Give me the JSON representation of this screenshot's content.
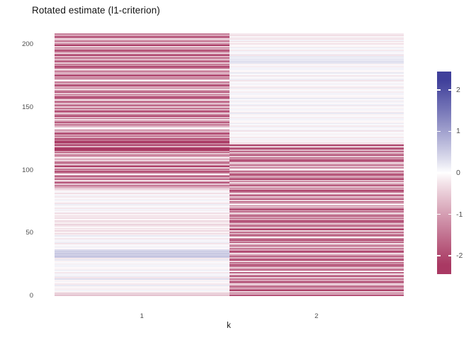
{
  "title": "Rotated estimate (l1-criterion)",
  "chart_data": {
    "type": "heatmap",
    "title": "Rotated estimate (l1-criterion)",
    "xlabel": "k",
    "ylabel": "",
    "x_categories": [
      "1",
      "2"
    ],
    "n_rows": 208,
    "ylim": [
      0,
      208
    ],
    "yticks": [
      0,
      50,
      100,
      150,
      200
    ],
    "grid": "off",
    "legend": {
      "position": "right",
      "ticks": [
        2,
        1,
        0,
        -1,
        -2
      ],
      "domain": [
        -2.44,
        2.44
      ],
      "high_color": "#40409b",
      "mid_color": "#ffffff",
      "low_color": "#a93963"
    },
    "series": [
      {
        "name": "k=1",
        "values": [
          -0.6,
          -0.4,
          -0.5,
          -0.1,
          0.1,
          -0.15,
          0.05,
          -0.1,
          0.2,
          -0.2,
          -0.05,
          0.1,
          -0.1,
          0.3,
          -0.25,
          0.15,
          -0.05,
          0.1,
          -0.2,
          0.05,
          0.2,
          -0.1,
          -0.05,
          0.1,
          0.1,
          -0.15,
          0.05,
          -0.1,
          0.2,
          -0.2,
          0.5,
          0.6,
          0.45,
          0.55,
          0.4,
          0.5,
          0.35,
          -0.05,
          0.1,
          -0.1,
          0.05,
          -0.25,
          0.15,
          -0.05,
          0.1,
          -0.2,
          0.05,
          0.2,
          -0.1,
          -0.3,
          -0.1,
          -0.35,
          -0.15,
          -0.3,
          -0.05,
          -0.25,
          -0.4,
          -0.1,
          -0.2,
          -0.35,
          -0.05,
          -0.3,
          -0.15,
          -0.25,
          -0.1,
          -0.3,
          0.05,
          -0.15,
          0.1,
          -0.2,
          0.05,
          -0.1,
          0.15,
          -0.25,
          -0.05,
          0.1,
          -0.15,
          0.05,
          -0.2,
          0.1,
          -0.05,
          -0.3,
          0.05,
          -0.15,
          -0.4,
          -0.6,
          -0.9,
          -1.4,
          -0.5,
          -1.8,
          -1.1,
          -0.3,
          -1.6,
          -0.7,
          -2.0,
          -1.3,
          -0.05,
          -1.5,
          -1.9,
          -0.8,
          -1.5,
          -0.4,
          -2.1,
          -1.2,
          -0.6,
          -1.7,
          -1.0,
          -0.3,
          -1.6,
          -0.05,
          -0.9,
          -1.4,
          -0.5,
          -1.8,
          -1.1,
          -2.2,
          -2.3,
          -2.1,
          -0.7,
          -2.0,
          -1.3,
          -2.2,
          -2.1,
          -1.5,
          -1.9,
          -0.8,
          -1.5,
          -0.4,
          -2.1,
          -1.2,
          -0.6,
          -1.7,
          -0.05,
          -0.3,
          -0.9,
          -1.4,
          -0.5,
          -1.8,
          -1.1,
          -0.3,
          -1.6,
          -0.7,
          -2.0,
          -1.3,
          -0.5,
          -1.5,
          -1.9,
          -0.8,
          -1.5,
          -0.4,
          -2.1,
          -1.2,
          -0.6,
          -1.7,
          -1.0,
          -0.3,
          -1.6,
          -2.0,
          -0.9,
          -1.4,
          -0.5,
          -1.8,
          -1.1,
          -0.3,
          -1.6,
          -0.7,
          -2.0,
          -1.3,
          -0.5,
          -1.5,
          -0.05,
          -0.8,
          -1.5,
          -0.4,
          -2.1,
          -1.2,
          -0.6,
          -1.7,
          -1.0,
          -0.3,
          -1.6,
          -2.0,
          -0.9,
          -1.4,
          -0.5,
          -1.8,
          -1.1,
          -0.3,
          -1.6,
          -0.7,
          -2.0,
          -1.3,
          -0.5,
          -1.5,
          -1.9,
          -0.8,
          -1.5,
          -0.4,
          -2.1,
          -1.2,
          -0.6,
          -1.7,
          -1.0,
          -0.3,
          -1.6,
          -2.0,
          -0.9,
          -1.3
        ]
      },
      {
        "name": "k=2",
        "values": [
          -1.9,
          -0.8,
          -1.5,
          -0.4,
          -2.1,
          -1.2,
          -0.6,
          -1.7,
          -1.0,
          -0.3,
          -1.6,
          -2.0,
          -0.9,
          -1.4,
          -0.5,
          -1.8,
          -1.1,
          -0.3,
          -1.6,
          -0.1,
          -2.0,
          -1.3,
          -0.5,
          -1.5,
          -1.9,
          -0.8,
          -1.5,
          -0.4,
          -2.1,
          -1.2,
          -0.6,
          -1.7,
          -1.0,
          -0.3,
          -1.6,
          -2.0,
          -0.9,
          -1.4,
          -0.5,
          -1.8,
          -1.1,
          -0.3,
          -1.6,
          -0.7,
          -2.0,
          -1.3,
          -0.1,
          -1.5,
          -1.9,
          -0.8,
          -1.5,
          -0.4,
          -2.1,
          -1.2,
          -0.6,
          -1.7,
          -1.0,
          -0.3,
          -1.6,
          -2.0,
          -0.9,
          -1.4,
          -0.5,
          -1.8,
          -1.1,
          -0.3,
          -1.6,
          -0.7,
          -2.0,
          -1.3,
          -0.5,
          -1.5,
          -0.1,
          -0.8,
          -1.5,
          -0.4,
          -2.1,
          -1.2,
          -0.6,
          -1.7,
          -1.0,
          -0.3,
          -1.6,
          -2.0,
          -0.9,
          -1.4,
          -0.5,
          -1.8,
          -1.1,
          -0.3,
          -1.6,
          -0.7,
          -2.0,
          -1.3,
          -0.5,
          -1.5,
          -1.9,
          -0.8,
          -1.5,
          -0.4,
          -0.1,
          -1.2,
          -0.6,
          -1.7,
          -1.0,
          -0.3,
          -1.6,
          -2.0,
          -0.9,
          -1.4,
          -0.5,
          -1.8,
          -1.1,
          -0.3,
          -1.6,
          -0.7,
          -2.0,
          -1.3,
          -0.5,
          -2.1,
          -0.3,
          -0.2,
          0.05,
          -0.15,
          0.1,
          -0.2,
          -0.05,
          0.1,
          -0.1,
          0.05,
          -0.25,
          0.15,
          -0.05,
          0.1,
          -0.2,
          0.05,
          0.2,
          -0.1,
          -0.05,
          0.1,
          0.1,
          -0.15,
          0.05,
          -0.1,
          0.2,
          -0.2,
          -0.05,
          0.1,
          -0.1,
          0.05,
          -0.25,
          0.15,
          -0.05,
          0.1,
          -0.2,
          0.05,
          0.2,
          -0.1,
          -0.05,
          0.1,
          0.1,
          -0.15,
          0.05,
          -0.1,
          0.2,
          -0.2,
          -0.05,
          0.1,
          -0.1,
          0.05,
          -0.25,
          0.15,
          -0.05,
          0.1,
          -0.2,
          0.05,
          0.2,
          -0.1,
          -0.05,
          0.1,
          0.1,
          -0.15,
          0.05,
          -0.1,
          0.25,
          0.3,
          0.2,
          0.25,
          0.15,
          0.2,
          -0.25,
          0.15,
          -0.05,
          0.1,
          -0.2,
          0.05,
          0.2,
          -0.1,
          -0.05,
          -0.25,
          -0.1,
          -0.3,
          0.1,
          -0.25,
          -0.15,
          0.05,
          -0.3,
          -0.2
        ]
      }
    ]
  }
}
